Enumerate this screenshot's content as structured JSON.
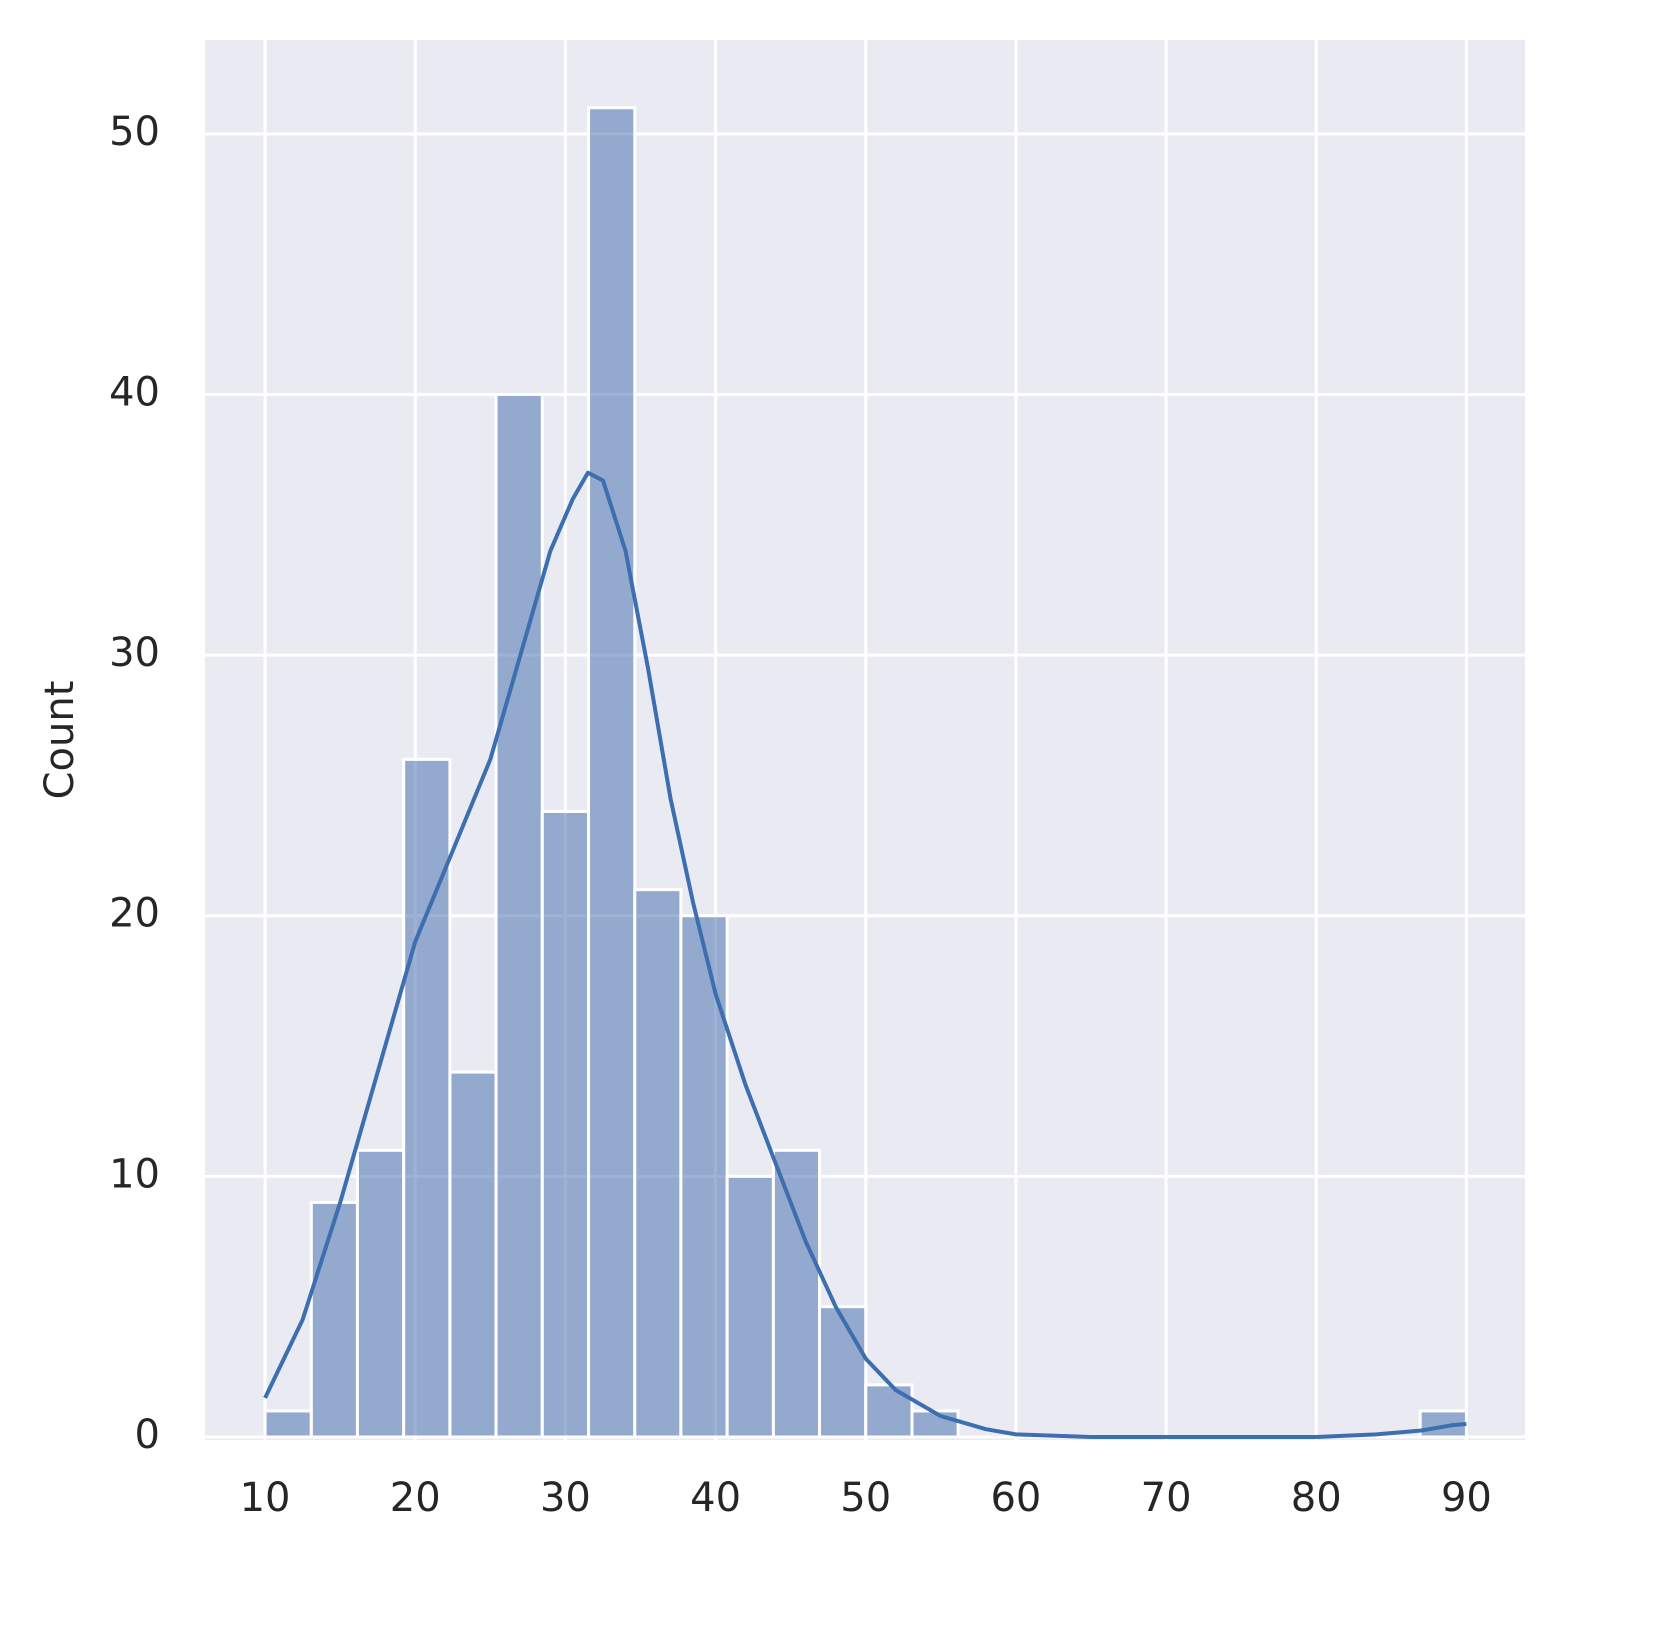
{
  "chart_data": {
    "type": "histogram",
    "y_label": "Count",
    "bins": [
      10,
      13.08,
      16.15,
      19.23,
      22.31,
      25.38,
      28.46,
      31.54,
      34.62,
      37.69,
      40.77,
      43.85,
      46.92,
      50,
      53.08,
      56.15,
      59.23,
      62.31,
      65.38,
      68.46,
      71.54,
      74.62,
      77.69,
      80.77,
      83.85,
      86.92,
      90
    ],
    "counts": [
      1,
      9,
      11,
      26,
      14,
      40,
      24,
      51,
      21,
      20,
      10,
      11,
      5,
      2,
      1,
      0,
      0,
      0,
      0,
      0,
      0,
      0,
      0,
      0,
      0,
      1
    ],
    "color": "#4c72b0",
    "kde": {
      "color": "#3d6eb0",
      "x": [
        10,
        12.5,
        15,
        17.5,
        20,
        22.5,
        25,
        27,
        29,
        30.5,
        31.5,
        32.5,
        34,
        35.5,
        37,
        38.5,
        40,
        42,
        44,
        46,
        48,
        50,
        52,
        55,
        58,
        60,
        65,
        70,
        75,
        80,
        84,
        87,
        89,
        90
      ],
      "y": [
        1.5,
        4.5,
        9,
        14,
        19,
        22.5,
        26,
        30,
        34,
        36,
        37,
        36.7,
        34,
        29.5,
        24.5,
        20.5,
        17,
        13.5,
        10.5,
        7.5,
        5,
        3,
        1.8,
        0.8,
        0.3,
        0.1,
        0,
        0,
        0,
        0,
        0.1,
        0.25,
        0.45,
        0.5
      ]
    },
    "xlim": [
      6,
      93.9
    ],
    "ylim": [
      0,
      53.6
    ],
    "xticks": [
      10,
      20,
      30,
      40,
      50,
      60,
      70,
      80,
      90
    ],
    "yticks": [
      0,
      10,
      20,
      30,
      40,
      50
    ],
    "grid": true,
    "background": "#eaeaf2"
  }
}
